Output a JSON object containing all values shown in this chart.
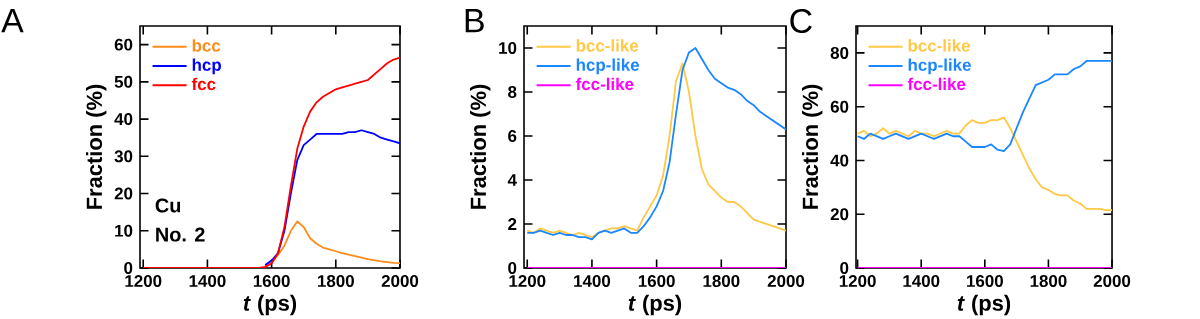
{
  "chart_data": [
    {
      "type": "line",
      "title": "A",
      "xlabel": "*t* (ps)",
      "ylabel": "Fraction (%)",
      "xlim": [
        1190,
        2000
      ],
      "ylim": [
        0,
        65
      ],
      "xticks": [
        1200,
        1400,
        1600,
        1800,
        2000
      ],
      "yticks": [
        0,
        10,
        20,
        30,
        40,
        50,
        60
      ],
      "legend": "top left",
      "grid": false,
      "marker": "none",
      "line_style": "solid",
      "annotations": [
        "Cu",
        "No. 2"
      ],
      "x": [
        1200,
        1220,
        1240,
        1260,
        1280,
        1300,
        1320,
        1340,
        1360,
        1380,
        1400,
        1420,
        1440,
        1460,
        1480,
        1500,
        1520,
        1540,
        1560,
        1580,
        1600,
        1620,
        1640,
        1660,
        1680,
        1700,
        1720,
        1740,
        1760,
        1780,
        1800,
        1820,
        1840,
        1860,
        1880,
        1900,
        1920,
        1940,
        1960,
        1980,
        2000
      ],
      "series": [
        {
          "name": "bcc",
          "color": "#ff8c1a",
          "values": [
            null,
            null,
            null,
            null,
            null,
            null,
            null,
            null,
            null,
            null,
            null,
            null,
            null,
            null,
            null,
            null,
            null,
            null,
            null,
            0.5,
            1.5,
            3.5,
            6,
            10,
            12.5,
            11,
            8,
            6.5,
            5.5,
            5,
            4.5,
            4,
            3.6,
            3.2,
            2.8,
            2.4,
            2.1,
            1.8,
            1.6,
            1.4,
            1.3
          ]
        },
        {
          "name": "hcp",
          "color": "#0000ff",
          "values": [
            null,
            null,
            null,
            null,
            null,
            null,
            null,
            null,
            null,
            null,
            null,
            null,
            null,
            null,
            null,
            null,
            null,
            null,
            null,
            0.8,
            2,
            4,
            10,
            20,
            29,
            33,
            34.5,
            36,
            36,
            36,
            36,
            36,
            36.5,
            36.5,
            37,
            36.5,
            36,
            35,
            34.5,
            34,
            33.5
          ]
        },
        {
          "name": "fcc",
          "color": "#ff0000",
          "values": [
            0,
            0,
            0,
            0,
            0,
            0,
            0,
            0,
            0,
            0,
            0,
            0,
            0,
            0,
            0,
            0,
            0,
            0,
            0,
            0.3,
            1.2,
            4,
            11,
            22,
            32,
            38,
            42,
            44.5,
            46,
            47,
            48,
            48.5,
            49,
            49.5,
            50,
            50.5,
            52,
            53.5,
            55,
            56,
            56.5
          ]
        }
      ]
    },
    {
      "type": "line",
      "title": "B",
      "xlabel": "*t* (ps)",
      "ylabel": "Fraction (%)",
      "xlim": [
        1190,
        2000
      ],
      "ylim": [
        0,
        11
      ],
      "xticks": [
        1200,
        1400,
        1600,
        1800,
        2000
      ],
      "yticks": [
        0,
        2,
        4,
        6,
        8,
        10
      ],
      "legend": "top left",
      "grid": false,
      "marker": "none",
      "line_style": "solid",
      "x": [
        1200,
        1220,
        1240,
        1260,
        1280,
        1300,
        1320,
        1340,
        1360,
        1380,
        1400,
        1420,
        1440,
        1460,
        1480,
        1500,
        1520,
        1540,
        1560,
        1580,
        1600,
        1620,
        1640,
        1660,
        1680,
        1700,
        1720,
        1740,
        1760,
        1780,
        1800,
        1820,
        1840,
        1860,
        1880,
        1900,
        1920,
        1940,
        1960,
        1980,
        2000
      ],
      "series": [
        {
          "name": "bcc-like",
          "color": "#ffc845",
          "values": [
            1.7,
            1.6,
            1.8,
            1.7,
            1.6,
            1.7,
            1.6,
            1.5,
            1.6,
            1.5,
            1.4,
            1.6,
            1.7,
            1.8,
            1.8,
            1.9,
            1.8,
            1.7,
            2.3,
            2.8,
            3.3,
            4.2,
            6,
            8.5,
            9.3,
            8,
            6,
            4.5,
            3.8,
            3.5,
            3.2,
            3.0,
            3.0,
            2.8,
            2.5,
            2.2,
            2.1,
            2.0,
            1.9,
            1.8,
            1.7
          ]
        },
        {
          "name": "hcp-like",
          "color": "#1a86ff",
          "values": [
            1.6,
            1.6,
            1.7,
            1.6,
            1.5,
            1.6,
            1.5,
            1.5,
            1.4,
            1.4,
            1.3,
            1.6,
            1.7,
            1.6,
            1.7,
            1.8,
            1.6,
            1.6,
            1.9,
            2.3,
            2.8,
            3.5,
            4.8,
            7,
            9,
            9.8,
            10,
            9.5,
            9,
            8.6,
            8.4,
            8.2,
            8.1,
            7.9,
            7.6,
            7.4,
            7.1,
            6.9,
            6.7,
            6.5,
            6.3
          ]
        },
        {
          "name": "fcc-like",
          "color": "#ff00ff",
          "values": [
            0,
            0,
            0,
            0,
            0,
            0,
            0,
            0,
            0,
            0,
            0,
            0,
            0,
            0,
            0,
            0,
            0,
            0,
            0,
            0,
            0,
            0,
            0,
            0,
            0,
            0,
            0,
            0,
            0,
            0,
            0,
            0,
            0,
            0,
            0,
            0,
            0,
            0,
            0,
            0,
            0
          ]
        }
      ]
    },
    {
      "type": "line",
      "title": "C",
      "xlabel": "*t* (ps)",
      "ylabel": "Fraction (%)",
      "xlim": [
        1195,
        2000
      ],
      "ylim": [
        0,
        90
      ],
      "xticks": [
        1200,
        1400,
        1600,
        1800,
        2000
      ],
      "yticks": [
        0,
        20,
        40,
        60,
        80
      ],
      "legend": "top left",
      "grid": false,
      "marker": "none",
      "line_style": "solid",
      "x": [
        1200,
        1220,
        1240,
        1260,
        1280,
        1300,
        1320,
        1340,
        1360,
        1380,
        1400,
        1420,
        1440,
        1460,
        1480,
        1500,
        1520,
        1540,
        1560,
        1580,
        1600,
        1620,
        1640,
        1660,
        1680,
        1700,
        1720,
        1740,
        1760,
        1780,
        1800,
        1820,
        1840,
        1860,
        1880,
        1900,
        1920,
        1940,
        1960,
        1980,
        2000
      ],
      "series": [
        {
          "name": "bcc-like",
          "color": "#ffc845",
          "values": [
            50,
            51,
            49,
            50,
            52,
            50,
            51,
            50,
            49,
            51,
            50,
            50,
            49,
            50,
            51,
            50,
            50,
            53,
            55,
            54,
            54,
            55,
            55,
            56,
            52,
            47,
            42,
            37,
            33,
            30,
            29,
            27.5,
            27,
            27,
            25,
            24,
            22,
            22,
            22,
            21.5,
            21.5
          ]
        },
        {
          "name": "hcp-like",
          "color": "#1a86ff",
          "values": [
            49,
            48,
            50,
            49,
            48,
            49,
            50,
            49,
            48,
            49,
            50,
            49,
            48,
            49,
            50,
            49,
            49,
            47,
            45,
            45,
            45,
            46,
            44,
            43.5,
            46,
            52,
            58,
            63,
            68,
            69,
            70,
            72,
            72,
            72,
            74,
            75,
            77,
            77,
            77,
            77,
            77
          ]
        },
        {
          "name": "fcc-like",
          "color": "#ff00ff",
          "values": [
            0,
            0,
            0,
            0,
            0,
            0,
            0,
            0,
            0,
            0,
            0,
            0,
            0,
            0,
            0,
            0,
            0,
            0,
            0,
            0,
            0,
            0,
            0,
            0,
            0,
            0,
            0,
            0,
            0,
            0,
            0,
            0,
            0,
            0,
            0,
            0,
            0,
            0,
            0,
            0,
            0
          ]
        }
      ]
    }
  ]
}
